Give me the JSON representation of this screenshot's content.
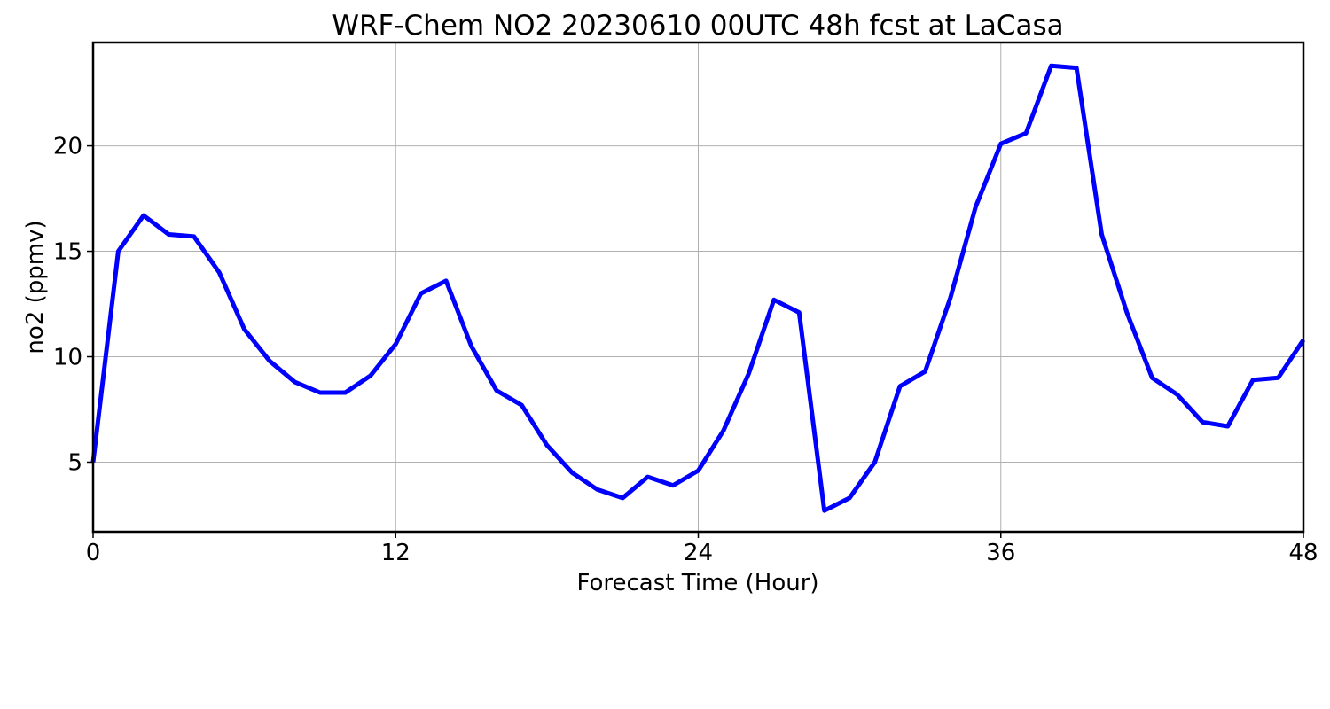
{
  "chart_data": {
    "type": "line",
    "title": "WRF-Chem NO2  20230610 00UTC 48h fcst at LaCasa",
    "xlabel": "Forecast Time (Hour)",
    "ylabel": "no2  (ppmv)",
    "xlim": [
      0,
      48
    ],
    "ylim": [
      1.7,
      24.9
    ],
    "xticks": [
      0,
      12,
      24,
      36,
      48
    ],
    "yticks": [
      5,
      10,
      15,
      20
    ],
    "grid": true,
    "series": [
      {
        "color": "#0000ff",
        "x": [
          0,
          1,
          2,
          3,
          4,
          5,
          6,
          7,
          8,
          9,
          10,
          11,
          12,
          13,
          14,
          15,
          16,
          17,
          18,
          19,
          20,
          21,
          22,
          23,
          24,
          25,
          26,
          27,
          28,
          29,
          30,
          31,
          32,
          33,
          34,
          35,
          36,
          37,
          38,
          39,
          40,
          41,
          42,
          43,
          44,
          45,
          46,
          47,
          48
        ],
        "values": [
          5.0,
          15.0,
          16.7,
          15.8,
          15.7,
          14.0,
          11.3,
          9.8,
          8.8,
          8.3,
          8.3,
          9.1,
          10.6,
          13.0,
          13.6,
          10.5,
          8.4,
          7.7,
          5.8,
          4.5,
          3.7,
          3.3,
          4.3,
          3.9,
          4.6,
          6.5,
          9.2,
          12.7,
          12.1,
          2.7,
          3.3,
          5.0,
          8.6,
          9.3,
          12.8,
          17.1,
          20.1,
          20.6,
          23.8,
          23.7,
          15.8,
          12.1,
          9.0,
          8.2,
          6.9,
          6.7,
          8.9,
          9.0,
          10.8
        ]
      }
    ]
  }
}
